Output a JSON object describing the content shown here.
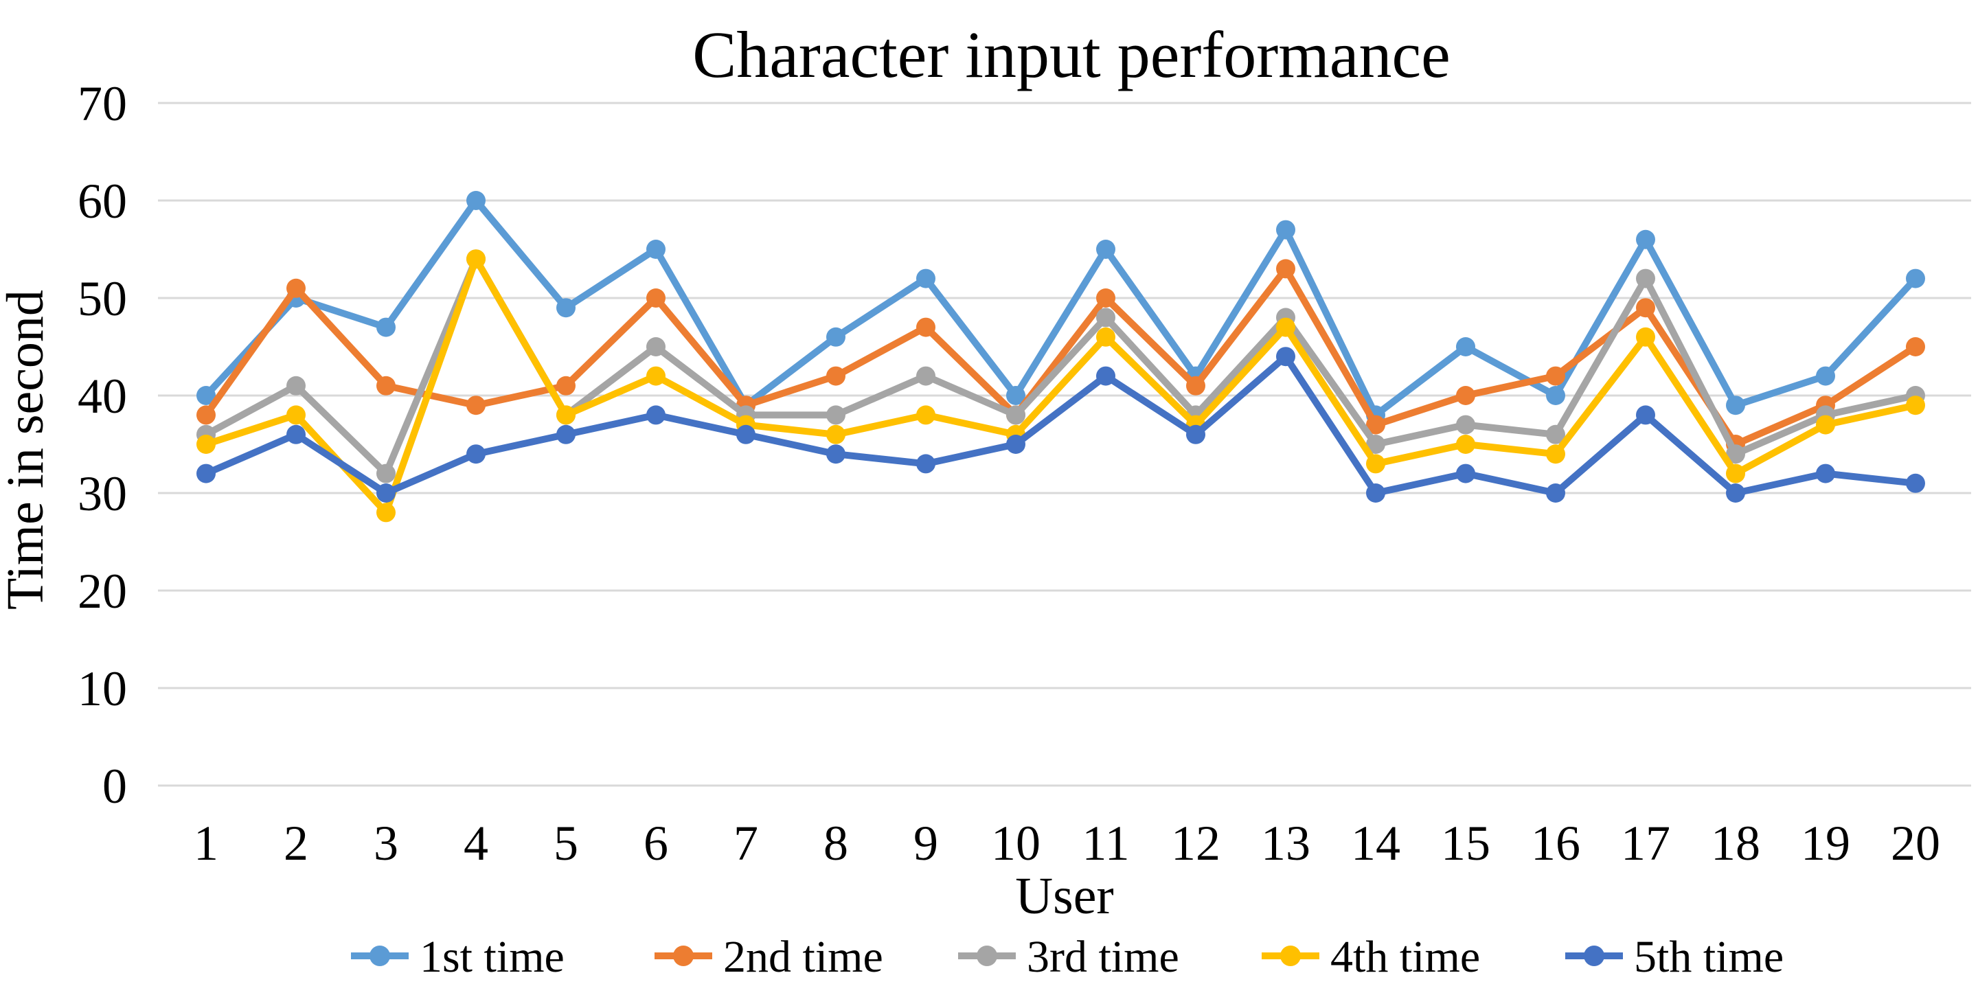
{
  "chart_data": {
    "type": "line",
    "title": "Character input performance",
    "xlabel": "User",
    "ylabel": "Time in second",
    "ylim": [
      0,
      70
    ],
    "ytick_step": 10,
    "yticks": [
      0,
      10,
      20,
      30,
      40,
      50,
      60,
      70
    ],
    "grid": true,
    "gridline_color": "#D9D9D9",
    "background_color": "#FFFFFF",
    "legend_position": "bottom",
    "marker_style": "circle",
    "categories": [
      "1",
      "2",
      "3",
      "4",
      "5",
      "6",
      "7",
      "8",
      "9",
      "10",
      "11",
      "12",
      "13",
      "14",
      "15",
      "16",
      "17",
      "18",
      "19",
      "20"
    ],
    "series": [
      {
        "name": "1st time",
        "color": "#5B9BD5",
        "values": [
          40,
          50,
          47,
          60,
          49,
          55,
          39,
          46,
          52,
          40,
          55,
          42,
          57,
          38,
          45,
          40,
          56,
          39,
          42,
          52
        ]
      },
      {
        "name": "2nd time",
        "color": "#ED7D31",
        "values": [
          38,
          51,
          41,
          39,
          41,
          50,
          39,
          42,
          47,
          38,
          50,
          41,
          53,
          37,
          40,
          42,
          49,
          35,
          39,
          45
        ]
      },
      {
        "name": "3rd time",
        "color": "#A5A5A5",
        "values": [
          36,
          41,
          32,
          54,
          38,
          45,
          38,
          38,
          42,
          38,
          48,
          38,
          48,
          35,
          37,
          36,
          52,
          34,
          38,
          40
        ]
      },
      {
        "name": "4th time",
        "color": "#FFC000",
        "values": [
          35,
          38,
          28,
          54,
          38,
          42,
          37,
          36,
          38,
          36,
          46,
          37,
          47,
          33,
          35,
          34,
          46,
          32,
          37,
          39
        ]
      },
      {
        "name": "5th time",
        "color": "#4472C4",
        "values": [
          32,
          36,
          30,
          34,
          36,
          38,
          36,
          34,
          33,
          35,
          42,
          36,
          44,
          30,
          32,
          30,
          38,
          30,
          32,
          31
        ]
      }
    ]
  }
}
